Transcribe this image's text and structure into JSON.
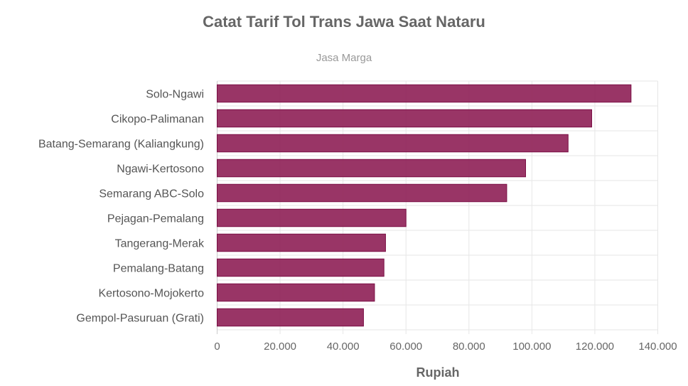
{
  "chart_data": {
    "type": "bar",
    "orientation": "horizontal",
    "title": "Catat Tarif Tol Trans Jawa Saat Nataru",
    "subtitle": "Jasa Marga",
    "xlabel": "Rupiah",
    "ylabel": "",
    "xlim": [
      0,
      140000
    ],
    "tick_labels": [
      "0",
      "20.000",
      "40.000",
      "60.000",
      "80.000",
      "100.000",
      "120.000",
      "140.000"
    ],
    "grid": true,
    "bar_color": "#8e1f55",
    "categories": [
      "Solo-Ngawi",
      "Cikopo-Palimanan",
      "Batang-Semarang (Kaliangkung)",
      "Ngawi-Kertosono",
      "Semarang ABC-Solo",
      "Pejagan-Pemalang",
      "Tangerang-Merak",
      "Pemalang-Batang",
      "Kertosono-Mojokerto",
      "Gempol-Pasuruan (Grati)"
    ],
    "values": [
      131500,
      119000,
      111500,
      98000,
      92000,
      60000,
      53500,
      53000,
      50000,
      46500
    ]
  }
}
